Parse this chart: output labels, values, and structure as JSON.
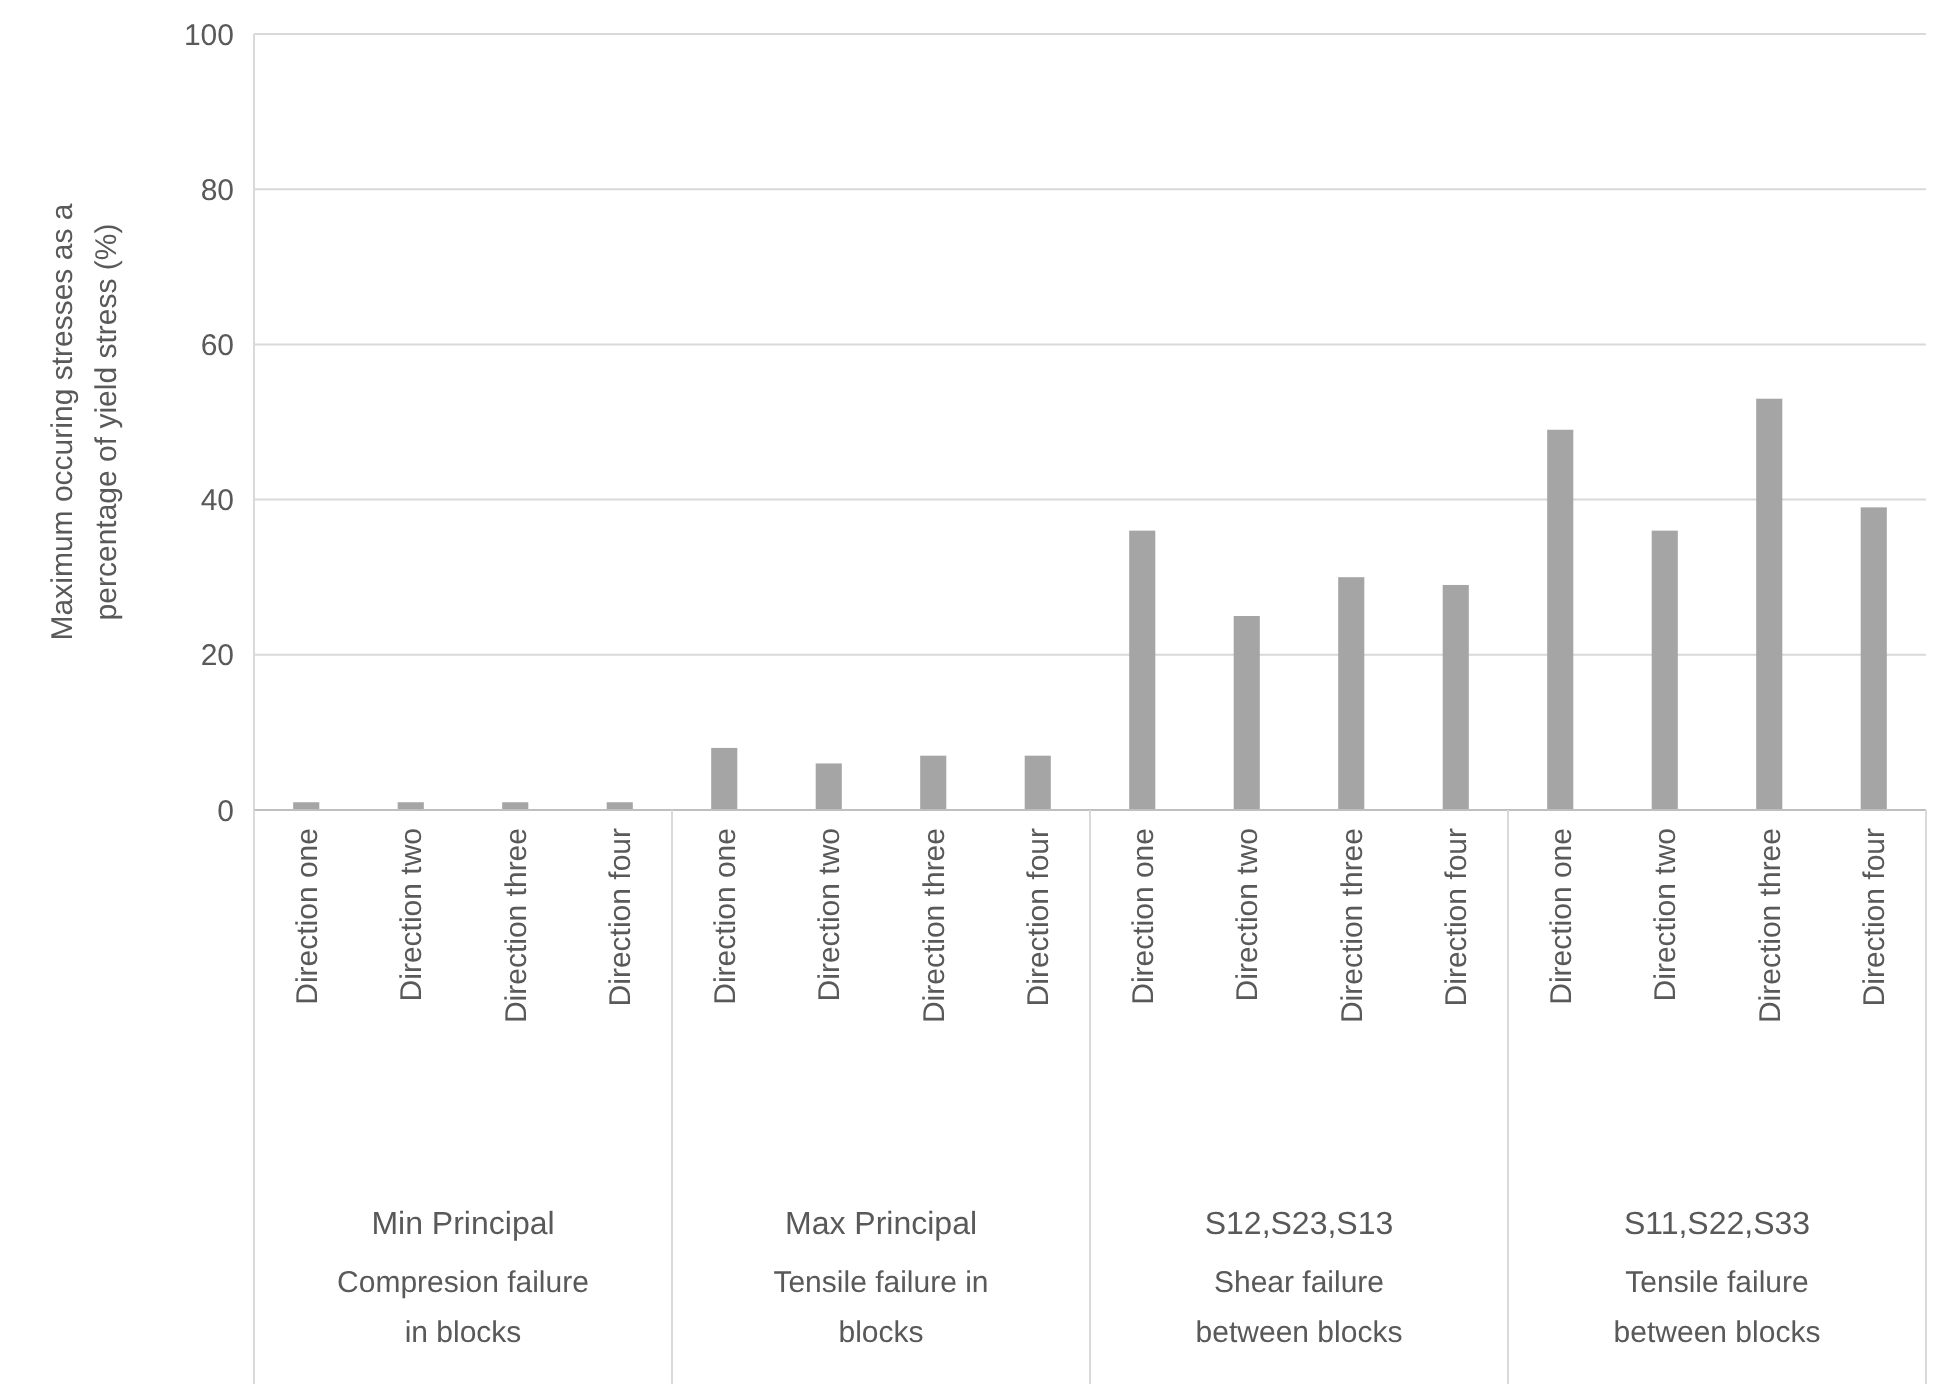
{
  "chart_data": {
    "type": "bar",
    "ylabel": "Maximum occuring stresses as a percentage of yield stress (%)",
    "categories": [
      "Direction one",
      "Direction two",
      "Direction three",
      "Direction four",
      "Direction one",
      "Direction two",
      "Direction three",
      "Direction four",
      "Direction one",
      "Direction two",
      "Direction three",
      "Direction four",
      "Direction one",
      "Direction two",
      "Direction three",
      "Direction four"
    ],
    "values": [
      1,
      1,
      1,
      1,
      8,
      6,
      7,
      7,
      36,
      25,
      30,
      29,
      49,
      36,
      53,
      39
    ],
    "color": "#a5a5a5",
    "ylim": [
      0,
      100
    ],
    "yticks": [
      0,
      20,
      40,
      60,
      80,
      100
    ],
    "grid": "y",
    "annotations": [
      "Min Principal",
      "Compresion failure in blocks",
      "Max Principal",
      "Tensile failure in blocks",
      "S12,S23,S13",
      "Shear failure between blocks",
      "S11,S22,S33",
      "Tensile failure between blocks"
    ]
  }
}
